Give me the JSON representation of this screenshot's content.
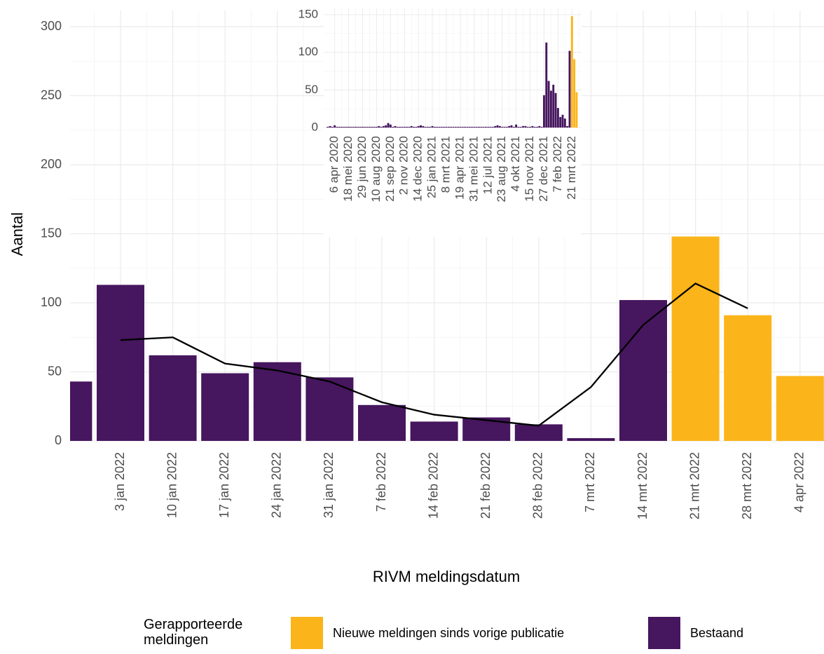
{
  "chart_data": [
    {
      "type": "bar",
      "y_label": "Aantal",
      "x_label": "RIVM meldingsdatum",
      "legend_title": "Gerapporteerde meldingen",
      "grid": true,
      "categories": [
        null,
        "3 jan 2022",
        "10 jan 2022",
        "17 jan 2022",
        "24 jan 2022",
        "31 jan 2022",
        "7 feb 2022",
        "14 feb 2022",
        "21 feb 2022",
        "28 feb 2022",
        "7 mrt 2022",
        "14 mrt 2022",
        "21 mrt 2022",
        "28 mrt 2022",
        "4 apr 2022"
      ],
      "series": [
        {
          "name": "Nieuwe meldingen sinds vorige publicatie",
          "color": "#fbb419",
          "values": [
            null,
            null,
            null,
            null,
            null,
            null,
            null,
            null,
            null,
            null,
            null,
            null,
            148,
            91,
            47
          ]
        },
        {
          "name": "Bestaand",
          "color": "#46165e",
          "values": [
            43,
            113,
            62,
            49,
            57,
            46,
            26,
            14,
            17,
            12,
            2,
            102,
            null,
            null,
            null
          ]
        }
      ],
      "trend": {
        "color": "#000000",
        "values": [
          null,
          73,
          75,
          56,
          51,
          43,
          28,
          19,
          15,
          11,
          39,
          84,
          114,
          96,
          null
        ]
      },
      "ylim": [
        0,
        300
      ],
      "yticks": [
        0,
        50,
        100,
        150,
        200,
        250,
        300
      ]
    },
    {
      "type": "bar",
      "grid": true,
      "categories": [
        null,
        null,
        null,
        "6 apr 2020",
        null,
        null,
        null,
        null,
        null,
        "18 mei 2020",
        null,
        null,
        null,
        null,
        null,
        "29 jun 2020",
        null,
        null,
        null,
        null,
        null,
        "10 aug 2020",
        null,
        null,
        null,
        null,
        null,
        "21 sep 2020",
        null,
        null,
        null,
        null,
        null,
        "2 nov 2020",
        null,
        null,
        null,
        null,
        null,
        "14 dec 2020",
        null,
        null,
        null,
        null,
        null,
        "25 jan 2021",
        null,
        null,
        null,
        null,
        null,
        "8 mrt 2021",
        null,
        null,
        null,
        null,
        null,
        "19 apr 2021",
        null,
        null,
        null,
        null,
        null,
        "31 mei 2021",
        null,
        null,
        null,
        null,
        null,
        "12 jul 2021",
        null,
        null,
        null,
        null,
        null,
        "23 aug 2021",
        null,
        null,
        null,
        null,
        null,
        "4 okt 2021",
        null,
        null,
        null,
        null,
        null,
        "15 nov 2021",
        null,
        null,
        null,
        null,
        null,
        "27 dec 2021",
        null,
        null,
        null,
        null,
        null,
        "7 feb 2022",
        null,
        null,
        null,
        null,
        null,
        "21 mrt 2022",
        null,
        null
      ],
      "series": [
        {
          "name": "Nieuwe meldingen sinds vorige publicatie",
          "color": "#fbb419",
          "values": [
            null,
            null,
            null,
            null,
            null,
            null,
            null,
            null,
            null,
            null,
            null,
            null,
            null,
            null,
            null,
            null,
            null,
            null,
            null,
            null,
            null,
            null,
            null,
            null,
            null,
            null,
            null,
            null,
            null,
            null,
            null,
            null,
            null,
            null,
            null,
            null,
            null,
            null,
            null,
            null,
            null,
            null,
            null,
            null,
            null,
            null,
            null,
            null,
            null,
            null,
            null,
            null,
            null,
            null,
            null,
            null,
            null,
            null,
            null,
            null,
            null,
            null,
            null,
            null,
            null,
            null,
            null,
            null,
            null,
            null,
            null,
            null,
            null,
            null,
            null,
            null,
            null,
            null,
            null,
            null,
            null,
            null,
            null,
            null,
            null,
            null,
            null,
            null,
            null,
            null,
            null,
            null,
            null,
            null,
            null,
            null,
            null,
            null,
            null,
            null,
            null,
            null,
            null,
            null,
            null,
            148,
            91,
            47
          ]
        },
        {
          "name": "Bestaand",
          "color": "#46165e",
          "values": [
            1,
            2,
            1,
            3,
            1,
            1,
            1,
            1,
            1,
            1,
            1,
            1,
            1,
            1,
            1,
            1,
            1,
            1,
            1,
            1,
            1,
            1,
            2,
            1,
            2,
            3,
            6,
            4,
            1,
            2,
            1,
            1,
            1,
            1,
            1,
            1,
            2,
            1,
            1,
            2,
            3,
            2,
            1,
            1,
            1,
            2,
            1,
            1,
            1,
            1,
            1,
            1,
            1,
            1,
            1,
            1,
            1,
            1,
            1,
            1,
            1,
            1,
            1,
            1,
            1,
            1,
            1,
            1,
            1,
            1,
            1,
            1,
            2,
            3,
            2,
            1,
            1,
            1,
            2,
            3,
            1,
            4,
            1,
            1,
            2,
            2,
            1,
            1,
            2,
            1,
            1,
            2,
            1,
            43,
            113,
            62,
            49,
            57,
            46,
            26,
            14,
            17,
            12,
            2,
            102,
            null,
            null,
            null
          ]
        }
      ],
      "ylim": [
        0,
        150
      ],
      "yticks": [
        0,
        50,
        100,
        150
      ]
    }
  ]
}
